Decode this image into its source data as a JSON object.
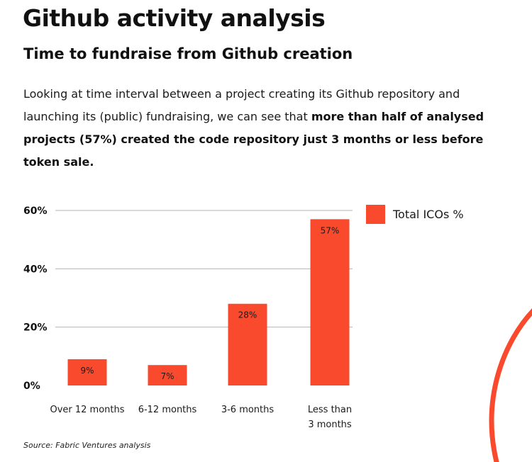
{
  "page": {
    "title": "Github activity analysis",
    "subtitle": "Time to fundraise from Github creation",
    "intro_normal": "Looking at time interval between a project creating its Github repository and launching its (public) fundraising, we can see that ",
    "intro_bold": "more than half of analysed projects (57%) created the code repository just 3 months or less before token sale.",
    "source": "Source: Fabric Ventures analysis"
  },
  "colors": {
    "accent": "#fa4a2e",
    "grid": "#b5b5b5"
  },
  "chart_data": {
    "type": "bar",
    "categories": [
      "Over 12 months",
      "6-12 months",
      "3-6 months",
      "Less than 3 months"
    ],
    "category_lines": [
      [
        "Over 12 months"
      ],
      [
        "6-12 months"
      ],
      [
        "3-6 months"
      ],
      [
        "Less than",
        "3 months"
      ]
    ],
    "series": [
      {
        "name": "Total ICOs %",
        "values": [
          9,
          7,
          28,
          57
        ]
      }
    ],
    "value_labels": [
      "9%",
      "7%",
      "28%",
      "57%"
    ],
    "yticks": [
      0,
      20,
      40,
      60
    ],
    "ytick_labels": [
      "0%",
      "20%",
      "40%",
      "60%"
    ],
    "ylim": [
      0,
      60
    ],
    "grid": true,
    "legend": "right"
  }
}
